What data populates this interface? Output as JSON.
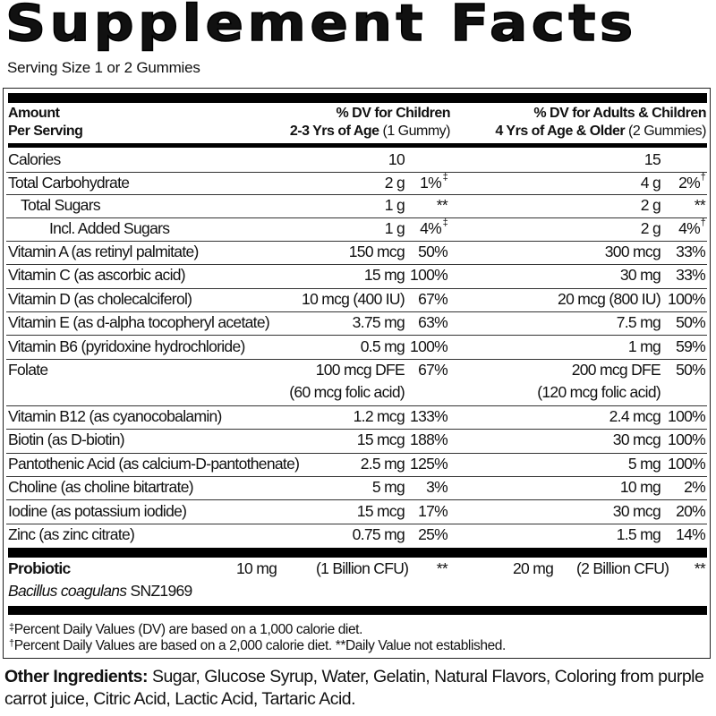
{
  "title": "Supplement Facts",
  "serving_size": "Serving Size 1 or 2 Gummies",
  "header": {
    "amount": "Amount",
    "per_serving": "Per Serving",
    "children_line1": "% DV for Children",
    "children_line2_bold": "2-3 Yrs of Age",
    "children_line2_normal": "(1 Gummy)",
    "adults_line1": "% DV for Adults & Children",
    "adults_line2_bold": "4 Yrs of Age & Older",
    "adults_line2_normal": "(2 Gummies)"
  },
  "rows": [
    {
      "name": "Calories",
      "indent": 0,
      "child_amt": "10",
      "child_dv": "",
      "adult_amt": "15",
      "adult_dv": ""
    },
    {
      "name": "Total Carbohydrate",
      "indent": 0,
      "child_amt": "2 g",
      "child_dv": "1%",
      "child_mark": "‡",
      "adult_amt": "4 g",
      "adult_dv": "2%",
      "adult_mark": "†"
    },
    {
      "name": "Total Sugars",
      "indent": 1,
      "child_amt": "1 g",
      "child_dv": "**",
      "adult_amt": "2 g",
      "adult_dv": "**"
    },
    {
      "name": "Incl. Added Sugars",
      "indent": 2,
      "child_amt": "1 g",
      "child_dv": "4%",
      "child_mark": "‡",
      "adult_amt": "2 g",
      "adult_dv": "4%",
      "adult_mark": "†"
    },
    {
      "name": "Vitamin A (as retinyl palmitate)",
      "indent": 0,
      "child_amt": "150 mcg",
      "child_dv": "50%",
      "adult_amt": "300 mcg",
      "adult_dv": "33%"
    },
    {
      "name": "Vitamin C (as ascorbic acid)",
      "indent": 0,
      "child_amt": "15 mg",
      "child_dv": "100%",
      "adult_amt": "30 mg",
      "adult_dv": "33%"
    },
    {
      "name": "Vitamin D (as cholecalciferol)",
      "indent": 0,
      "child_amt": "10 mcg (400 IU)",
      "child_dv": "67%",
      "adult_amt": "20 mcg (800 IU)",
      "adult_dv": "100%"
    },
    {
      "name": "Vitamin E (as d-alpha tocopheryl acetate)",
      "indent": 0,
      "child_amt": "3.75 mg",
      "child_dv": "63%",
      "adult_amt": "7.5 mg",
      "adult_dv": "50%"
    },
    {
      "name": "Vitamin B6 (pyridoxine hydrochloride)",
      "indent": 0,
      "child_amt": "0.5 mg",
      "child_dv": "100%",
      "adult_amt": "1 mg",
      "adult_dv": "59%"
    },
    {
      "name": "Folate",
      "indent": 0,
      "child_amt": "100 mcg DFE",
      "child_amt2": "(60 mcg folic acid)",
      "child_dv": "67%",
      "adult_amt": "200 mcg DFE",
      "adult_amt2": "(120 mcg folic acid)",
      "adult_dv": "50%"
    },
    {
      "name": "Vitamin B12 (as cyanocobalamin)",
      "indent": 0,
      "child_amt": "1.2 mcg",
      "child_dv": "133%",
      "adult_amt": "2.4 mcg",
      "adult_dv": "100%"
    },
    {
      "name": "Biotin (as D-biotin)",
      "indent": 0,
      "child_amt": "15 mcg",
      "child_dv": "188%",
      "adult_amt": "30 mcg",
      "adult_dv": "100%"
    },
    {
      "name": "Pantothenic Acid (as calcium-D-pantothenate)",
      "indent": 0,
      "child_amt": "2.5 mg",
      "child_dv": "125%",
      "adult_amt": "5 mg",
      "adult_dv": "100%"
    },
    {
      "name": "Choline (as choline bitartrate)",
      "indent": 0,
      "child_amt": "5 mg",
      "child_dv": "3%",
      "adult_amt": "10 mg",
      "adult_dv": "2%"
    },
    {
      "name": "Iodine (as potassium iodide)",
      "indent": 0,
      "child_amt": "15 mcg",
      "child_dv": "17%",
      "adult_amt": "30 mcg",
      "adult_dv": "20%"
    },
    {
      "name": "Zinc (as zinc citrate)",
      "indent": 0,
      "child_amt": "0.75 mg",
      "child_dv": "25%",
      "adult_amt": "1.5 mg",
      "adult_dv": "14%"
    }
  ],
  "probiotic": {
    "name": "Probiotic",
    "strain_italic": "Bacillus coagulans",
    "strain_code": "SNZ1969",
    "child_amt": "10 mg",
    "child_cfu": "(1 Billion CFU)",
    "child_dv": "**",
    "adult_amt": "20 mg",
    "adult_cfu": "(2 Billion CFU)",
    "adult_dv": "**"
  },
  "footnotes": {
    "line1_mark": "‡",
    "line1": "Percent Daily Values (DV) are based on a 1,000 calorie diet.",
    "line2_mark": "†",
    "line2": "Percent Daily Values are based on a 2,000 calorie diet. **Daily Value not established."
  },
  "other_ingredients": {
    "label": "Other Ingredients:",
    "text": "Sugar, Glucose Syrup, Water, Gelatin, Natural Flavors, Coloring from purple carrot juice, Citric Acid, Lactic Acid, Tartaric Acid."
  }
}
